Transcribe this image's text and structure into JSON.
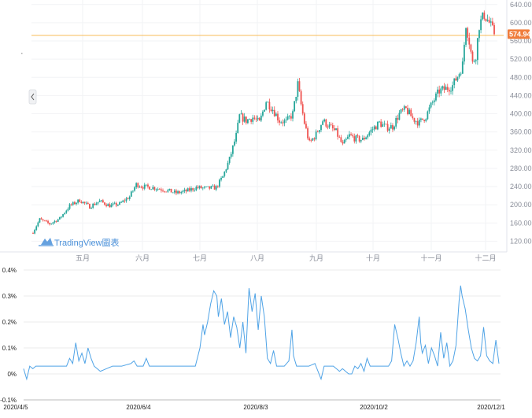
{
  "watermark": {
    "brand": "TradingView",
    "suffix": "圖表",
    "icon": "tradingview-logo-icon"
  },
  "colors": {
    "up": "#26a69a",
    "down": "#ef5350",
    "price_line": "#f5a623",
    "price_tag": "#f07d3c",
    "line": "#4fa3e6",
    "grid": "#eeeeee"
  },
  "chart_data": [
    {
      "type": "candlestick",
      "title": "",
      "price_axis": {
        "ticks": [
          640,
          600,
          560,
          520,
          480,
          440,
          400,
          360,
          320,
          280,
          240,
          200,
          160,
          120
        ],
        "range": [
          100,
          650
        ],
        "position": "right"
      },
      "month_labels": [
        "五月",
        "六月",
        "七月",
        "八月",
        "九月",
        "十月",
        "十一月",
        "十二月"
      ],
      "last_price": 574.94,
      "last_price_label": "574.94",
      "date_range": [
        "2020-04-05",
        "2020-12-02"
      ],
      "close_keypoints": [
        [
          0,
          140
        ],
        [
          4,
          168
        ],
        [
          10,
          158
        ],
        [
          16,
          170
        ],
        [
          22,
          198
        ],
        [
          28,
          210
        ],
        [
          34,
          196
        ],
        [
          40,
          208
        ],
        [
          46,
          198
        ],
        [
          52,
          202
        ],
        [
          58,
          218
        ],
        [
          62,
          245
        ],
        [
          66,
          240
        ],
        [
          72,
          238
        ],
        [
          80,
          232
        ],
        [
          86,
          226
        ],
        [
          92,
          230
        ],
        [
          98,
          238
        ],
        [
          104,
          236
        ],
        [
          110,
          238
        ],
        [
          114,
          262
        ],
        [
          118,
          300
        ],
        [
          122,
          352
        ],
        [
          124,
          395
        ],
        [
          128,
          385
        ],
        [
          132,
          392
        ],
        [
          136,
          380
        ],
        [
          140,
          428
        ],
        [
          144,
          410
        ],
        [
          148,
          385
        ],
        [
          152,
          382
        ],
        [
          156,
          400
        ],
        [
          159,
          465
        ],
        [
          161,
          420
        ],
        [
          163,
          380
        ],
        [
          166,
          335
        ],
        [
          170,
          355
        ],
        [
          174,
          385
        ],
        [
          178,
          372
        ],
        [
          182,
          360
        ],
        [
          186,
          330
        ],
        [
          190,
          352
        ],
        [
          194,
          345
        ],
        [
          198,
          343
        ],
        [
          203,
          363
        ],
        [
          208,
          380
        ],
        [
          212,
          370
        ],
        [
          216,
          372
        ],
        [
          220,
          400
        ],
        [
          224,
          410
        ],
        [
          228,
          390
        ],
        [
          232,
          380
        ],
        [
          236,
          395
        ],
        [
          240,
          425
        ],
        [
          244,
          450
        ],
        [
          248,
          455
        ],
        [
          252,
          462
        ],
        [
          256,
          490
        ],
        [
          258,
          508
        ],
        [
          260,
          598
        ],
        [
          262,
          560
        ],
        [
          264,
          510
        ],
        [
          266,
          530
        ],
        [
          268,
          595
        ],
        [
          271,
          618
        ],
        [
          274,
          600
        ],
        [
          277,
          575
        ]
      ],
      "total_candles": 278
    },
    {
      "type": "line",
      "title": "",
      "x_ticks": [
        "2020/4/5",
        "2020/6/4",
        "2020/8/3",
        "2020/10/2",
        "2020/12/1"
      ],
      "y_ticks": [
        "0.4%",
        "0.3%",
        "0.2%",
        "0.1%",
        "0%",
        "-0.1%"
      ],
      "ylim": [
        -0.1,
        0.4
      ],
      "unit": "%",
      "y_keypoints": [
        [
          0,
          0.02
        ],
        [
          2,
          -0.02
        ],
        [
          4,
          0.03
        ],
        [
          6,
          0.02
        ],
        [
          8,
          0.03
        ],
        [
          12,
          0.03
        ],
        [
          20,
          0.03
        ],
        [
          28,
          0.03
        ],
        [
          30,
          0.06
        ],
        [
          32,
          0.04
        ],
        [
          34,
          0.12
        ],
        [
          36,
          0.05
        ],
        [
          38,
          0.08
        ],
        [
          40,
          0.04
        ],
        [
          42,
          0.1
        ],
        [
          44,
          0.06
        ],
        [
          46,
          0.03
        ],
        [
          50,
          0.01
        ],
        [
          54,
          0.02
        ],
        [
          58,
          0.03
        ],
        [
          64,
          0.03
        ],
        [
          70,
          0.04
        ],
        [
          72,
          0.05
        ],
        [
          74,
          0.03
        ],
        [
          78,
          0.03
        ],
        [
          80,
          0.06
        ],
        [
          82,
          0.03
        ],
        [
          86,
          0.03
        ],
        [
          92,
          0.03
        ],
        [
          100,
          0.03
        ],
        [
          106,
          0.03
        ],
        [
          112,
          0.03
        ],
        [
          115,
          0.1
        ],
        [
          117,
          0.19
        ],
        [
          118,
          0.15
        ],
        [
          120,
          0.2
        ],
        [
          122,
          0.27
        ],
        [
          124,
          0.32
        ],
        [
          126,
          0.3
        ],
        [
          127,
          0.22
        ],
        [
          129,
          0.29
        ],
        [
          131,
          0.19
        ],
        [
          133,
          0.24
        ],
        [
          135,
          0.14
        ],
        [
          137,
          0.22
        ],
        [
          139,
          0.18
        ],
        [
          141,
          0.1
        ],
        [
          143,
          0.2
        ],
        [
          145,
          0.08
        ],
        [
          147,
          0.33
        ],
        [
          149,
          0.24
        ],
        [
          151,
          0.31
        ],
        [
          153,
          0.17
        ],
        [
          155,
          0.3
        ],
        [
          157,
          0.22
        ],
        [
          159,
          0.06
        ],
        [
          161,
          0.04
        ],
        [
          163,
          0.09
        ],
        [
          165,
          0.03
        ],
        [
          167,
          0.03
        ],
        [
          170,
          0.03
        ],
        [
          173,
          0.05
        ],
        [
          175,
          0.17
        ],
        [
          176,
          0.07
        ],
        [
          178,
          0.03
        ],
        [
          181,
          0.03
        ],
        [
          186,
          0.03
        ],
        [
          190,
          0.04
        ],
        [
          192,
          0.01
        ],
        [
          194,
          -0.02
        ],
        [
          196,
          0.03
        ],
        [
          198,
          0.03
        ],
        [
          202,
          0.03
        ],
        [
          204,
          0.02
        ],
        [
          206,
          0.01
        ],
        [
          208,
          0.02
        ],
        [
          212,
          0.0
        ],
        [
          214,
          0.0
        ],
        [
          216,
          0.03
        ],
        [
          218,
          0.02
        ],
        [
          220,
          0.04
        ],
        [
          222,
          0.01
        ],
        [
          224,
          0.06
        ],
        [
          226,
          0.03
        ],
        [
          228,
          0.03
        ],
        [
          232,
          0.03
        ],
        [
          236,
          0.03
        ],
        [
          238,
          0.03
        ],
        [
          240,
          0.05
        ],
        [
          242,
          0.19
        ],
        [
          244,
          0.14
        ],
        [
          246,
          0.08
        ],
        [
          248,
          0.03
        ],
        [
          250,
          0.05
        ],
        [
          252,
          0.03
        ],
        [
          254,
          0.05
        ],
        [
          256,
          0.12
        ],
        [
          258,
          0.22
        ],
        [
          259,
          0.12
        ],
        [
          260,
          0.08
        ],
        [
          262,
          0.11
        ],
        [
          264,
          0.04
        ],
        [
          266,
          0.1
        ],
        [
          268,
          0.07
        ],
        [
          270,
          0.03
        ],
        [
          272,
          0.16
        ],
        [
          274,
          0.06
        ],
        [
          276,
          0.12
        ],
        [
          278,
          0.03
        ],
        [
          280,
          0.05
        ],
        [
          282,
          0.11
        ],
        [
          284,
          0.28
        ],
        [
          285,
          0.34
        ],
        [
          286,
          0.3
        ],
        [
          288,
          0.25
        ],
        [
          290,
          0.17
        ],
        [
          292,
          0.1
        ],
        [
          294,
          0.06
        ],
        [
          296,
          0.05
        ],
        [
          298,
          0.07
        ],
        [
          300,
          0.18
        ],
        [
          302,
          0.07
        ],
        [
          304,
          0.05
        ],
        [
          306,
          0.04
        ],
        [
          308,
          0.13
        ],
        [
          310,
          0.04
        ]
      ],
      "total_points": 311
    }
  ]
}
